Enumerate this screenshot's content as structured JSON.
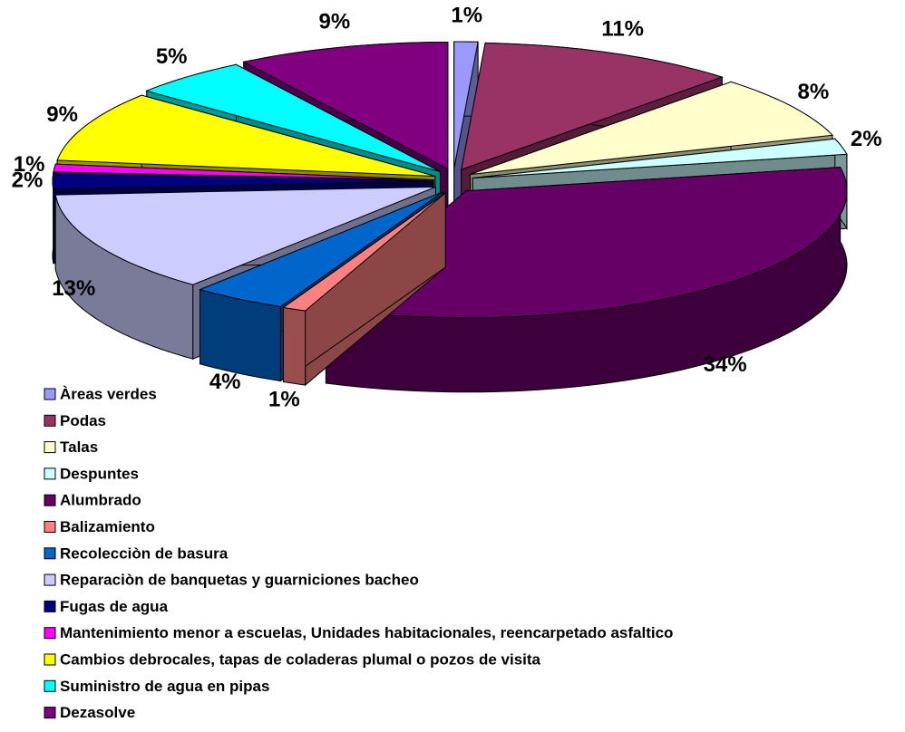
{
  "chart_data": {
    "type": "pie",
    "categories": [
      "Àreas verdes",
      "Podas",
      "Talas",
      "Despuntes",
      "Alumbrado",
      "Balizamiento",
      "Recolecciòn de basura",
      "Reparaciòn de banquetas y guarniciones bacheo",
      "Fugas de agua",
      "Mantenimiento menor a escuelas, Unidades habitacionales, reencarpetado asfaltico",
      "Cambios debrocales, tapas de coladeras plumal o pozos de visita",
      "Suministro de agua en pipas",
      "Dezasolve"
    ],
    "values": [
      1,
      11,
      8,
      2,
      34,
      1,
      4,
      13,
      2,
      1,
      9,
      5,
      9
    ],
    "value_labels": [
      "1%",
      "11%",
      "8%",
      "2%",
      "34%",
      "1%",
      "4%",
      "13%",
      "2%",
      "1%",
      "9%",
      "5%",
      "9%"
    ],
    "colors": [
      "#9999ff",
      "#993366",
      "#ffffcc",
      "#ccffff",
      "#660066",
      "#ff8080",
      "#0066cc",
      "#ccccff",
      "#000080",
      "#ff00ff",
      "#ffff00",
      "#00ffff",
      "#800080"
    ],
    "legend": "bottom-left"
  }
}
